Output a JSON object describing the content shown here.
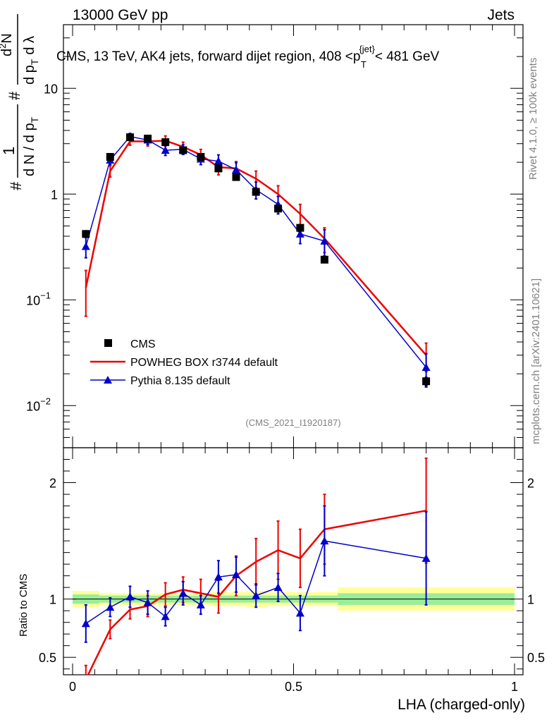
{
  "header": {
    "left": "13000 GeV pp",
    "right": "Jets"
  },
  "chart_data": {
    "type": "line",
    "title": "CMS, 13 TeV, AK4 jets, forward dijet region, 408 <p",
    "title_sup": "{jet}",
    "title_sub": "T",
    "title_end": "< 481 GeV",
    "ylabel_parts": [
      "#",
      "1",
      "d N / d p",
      "T",
      "#",
      "d",
      "2",
      "N",
      "d p",
      "T",
      "d λ"
    ],
    "xlabel": "LHA (charged-only)",
    "ratio_ylabel": "Ratio to CMS",
    "analysis_tag": "(CMS_2021_I1920187)",
    "side_text_1": "Rivet 4.1.0, ≥ 100k events",
    "side_text_2": "mcplots.cern.ch [arXiv:2401.10621]",
    "xlim": [
      0,
      1
    ],
    "ylim_main": [
      0.004,
      40
    ],
    "ylim_ratio": [
      0.35,
      2.3
    ],
    "x_ticks": [
      {
        "v": 0,
        "label": "0"
      },
      {
        "v": 0.5,
        "label": "0.5"
      },
      {
        "v": 1,
        "label": "1"
      }
    ],
    "main_y_ticks": [
      {
        "v": 0.01,
        "base": "10",
        "exp": "−2"
      },
      {
        "v": 0.1,
        "base": "10",
        "exp": "−1"
      },
      {
        "v": 1,
        "base": "1",
        "exp": ""
      },
      {
        "v": 10,
        "base": "10",
        "exp": ""
      }
    ],
    "ratio_y_ticks": [
      {
        "v": 0.5,
        "label": "0.5"
      },
      {
        "v": 1,
        "label": "1"
      },
      {
        "v": 2,
        "label": "2"
      }
    ],
    "x": [
      0.03,
      0.085,
      0.13,
      0.17,
      0.21,
      0.25,
      0.29,
      0.33,
      0.37,
      0.415,
      0.465,
      0.515,
      0.57,
      0.8
    ],
    "bin_edges": [
      0,
      0.06,
      0.11,
      0.15,
      0.19,
      0.23,
      0.27,
      0.31,
      0.35,
      0.39,
      0.44,
      0.49,
      0.54,
      0.6,
      1.0
    ],
    "band_inner": [
      0.04,
      0.03,
      0.03,
      0.03,
      0.03,
      0.03,
      0.03,
      0.03,
      0.03,
      0.03,
      0.03,
      0.03,
      0.03,
      0.05
    ],
    "band_outer": [
      0.07,
      0.05,
      0.05,
      0.05,
      0.05,
      0.05,
      0.05,
      0.06,
      0.06,
      0.07,
      0.06,
      0.06,
      0.06,
      0.1
    ],
    "series": [
      {
        "name": "CMS",
        "color": "#000000",
        "marker": "square",
        "values": [
          0.42,
          2.25,
          3.45,
          3.35,
          3.1,
          2.6,
          2.25,
          1.75,
          1.45,
          1.05,
          0.73,
          0.48,
          0.24,
          0.017
        ],
        "err": [
          0.03,
          0.1,
          0.12,
          0.12,
          0.12,
          0.1,
          0.1,
          0.08,
          0.07,
          0.06,
          0.05,
          0.03,
          0.015,
          0.0015
        ]
      },
      {
        "name": "POWHEG BOX r3744 default",
        "color": "#ee0000",
        "marker": "none",
        "values": [
          0.13,
          1.65,
          3.15,
          3.15,
          3.2,
          2.8,
          2.35,
          1.8,
          1.75,
          1.4,
          1.0,
          0.65,
          0.38,
          0.03
        ],
        "err": [
          0.06,
          0.2,
          0.25,
          0.3,
          0.35,
          0.3,
          0.3,
          0.28,
          0.28,
          0.25,
          0.2,
          0.15,
          0.1,
          0.009
        ],
        "ratio": [
          0.31,
          0.74,
          0.91,
          0.94,
          1.04,
          1.08,
          1.05,
          1.02,
          1.2,
          1.32,
          1.42,
          1.35,
          1.6,
          1.76
        ],
        "ratio_err": [
          0.12,
          0.08,
          0.08,
          0.09,
          0.1,
          0.11,
          0.12,
          0.14,
          0.17,
          0.2,
          0.25,
          0.25,
          0.3,
          0.45
        ]
      },
      {
        "name": "Pythia 8.135 default",
        "color": "#0000cc",
        "marker": "triangle",
        "values": [
          0.32,
          2.1,
          3.5,
          3.25,
          2.6,
          2.65,
          2.15,
          2.05,
          1.7,
          1.1,
          0.8,
          0.42,
          0.36,
          0.023
        ],
        "err": [
          0.07,
          0.2,
          0.25,
          0.3,
          0.28,
          0.28,
          0.25,
          0.3,
          0.28,
          0.2,
          0.15,
          0.08,
          0.1,
          0.008
        ],
        "ratio": [
          0.79,
          0.93,
          1.02,
          0.97,
          0.85,
          1.05,
          0.95,
          1.19,
          1.21,
          1.03,
          1.1,
          0.88,
          1.5,
          1.35
        ],
        "ratio_err": [
          0.16,
          0.08,
          0.09,
          0.1,
          0.08,
          0.1,
          0.08,
          0.14,
          0.15,
          0.1,
          0.12,
          0.15,
          0.3,
          0.4
        ]
      }
    ]
  }
}
